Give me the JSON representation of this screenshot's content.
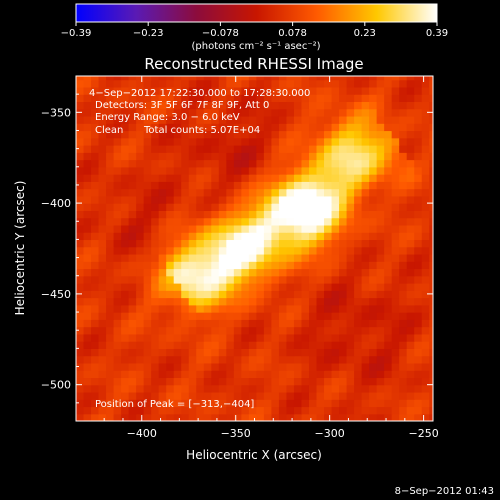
{
  "chart_data": {
    "type": "heatmap",
    "title": "Reconstructed RHESSI Image",
    "xlabel": "Heliocentric X (arcsec)",
    "ylabel": "Heliocentric Y (arcsec)",
    "xlim": [
      -435,
      -245
    ],
    "ylim": [
      -520,
      -330
    ],
    "xticks": [
      -400,
      -350,
      -300,
      -250
    ],
    "yticks": [
      -350,
      -400,
      -450,
      -500
    ],
    "colorbar": {
      "range": [
        -0.39,
        0.39
      ],
      "ticks": [
        "−0.39",
        "−0.23",
        "−0.078",
        "0.078",
        "0.23",
        "0.39"
      ],
      "unit_label": "(photons cm⁻² s⁻¹ asec⁻²)",
      "colormap": [
        "#0000ff",
        "#5a1ab4",
        "#8c0c3c",
        "#c81600",
        "#ff5a00",
        "#ffc800",
        "#ffffff"
      ]
    },
    "annotations": {
      "time_range": "4−Sep−2012 17:22:30.000 to 17:28:30.000",
      "detectors": "Detectors: 3F 5F 6F 7F 8F 9F, Att 0",
      "energy": "Energy Range: 3.0 − 6.0 keV",
      "clean": "Clean",
      "total_counts": "Total counts: 5.07E+04",
      "peak": "Position of Peak = [−313,−404]"
    },
    "peak_position": [
      -313,
      -404
    ],
    "sources": [
      {
        "x": -313,
        "y": -404,
        "intensity": 0.39
      },
      {
        "x": -345,
        "y": -425,
        "intensity": 0.3
      },
      {
        "x": -372,
        "y": -440,
        "intensity": 0.28
      },
      {
        "x": -290,
        "y": -370,
        "intensity": 0.24
      }
    ]
  },
  "footer": {
    "timestamp": "8−Sep−2012 01:43"
  }
}
